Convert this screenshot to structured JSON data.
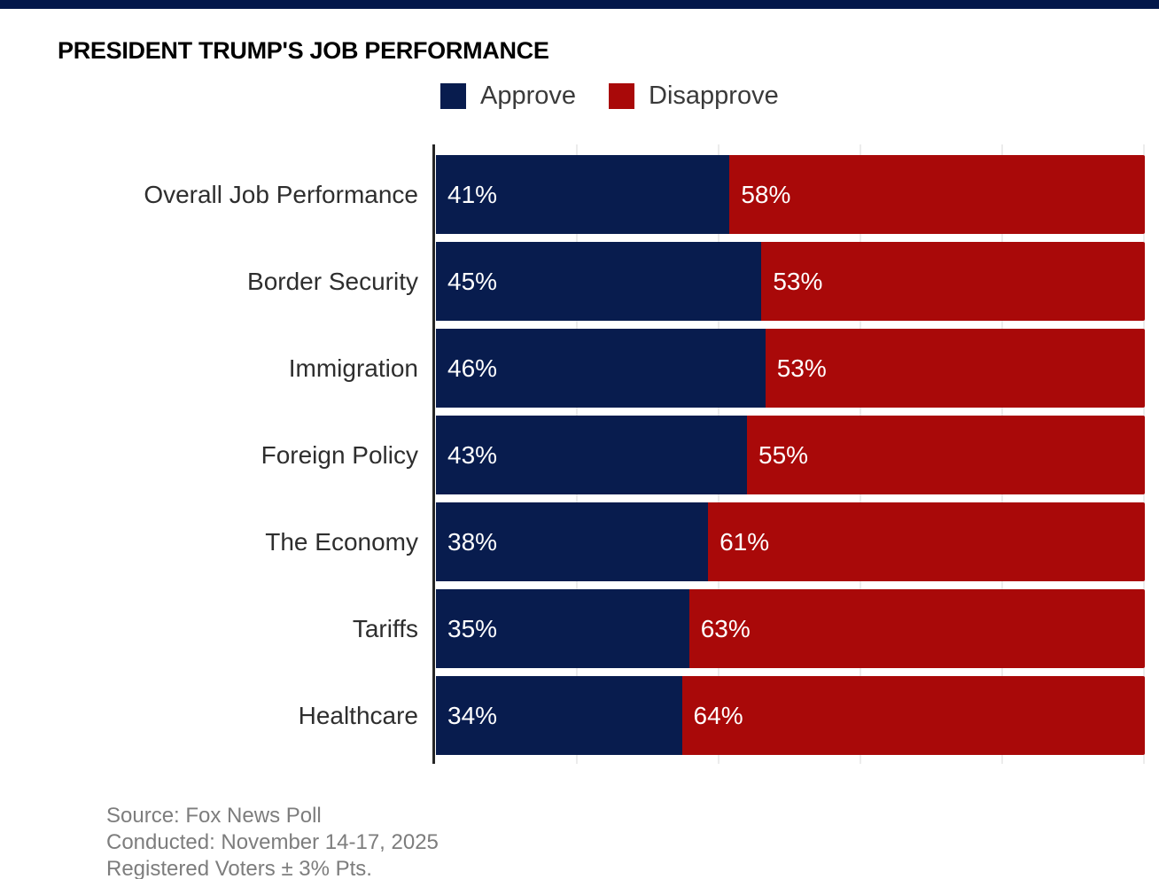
{
  "title": "PRESIDENT TRUMP'S JOB PERFORMANCE",
  "banner": {
    "color": "#02174a"
  },
  "colors": {
    "approve": "#081c4e",
    "disapprove": "#a90909",
    "axis": "#262626",
    "gridline": "#ececec"
  },
  "legend": {
    "items": [
      {
        "label": "Approve",
        "color": "#081c4e"
      },
      {
        "label": "Disapprove",
        "color": "#a90909"
      }
    ]
  },
  "chart_data": {
    "type": "bar",
    "orientation": "horizontal",
    "stacked": true,
    "normalized": true,
    "title": "PRESIDENT TRUMP'S JOB PERFORMANCE",
    "categories": [
      "Overall Job Performance",
      "Border Security",
      "Immigration",
      "Foreign Policy",
      "The Economy",
      "Tariffs",
      "Healthcare"
    ],
    "series": [
      {
        "name": "Approve",
        "color": "#081c4e",
        "values": [
          41,
          45,
          46,
          43,
          38,
          35,
          34
        ]
      },
      {
        "name": "Disapprove",
        "color": "#a90909",
        "values": [
          58,
          53,
          53,
          55,
          61,
          63,
          64
        ]
      }
    ],
    "value_suffix": "%",
    "xlim": [
      0,
      100
    ],
    "grid": "vertical gridlines every 20%",
    "legend_position": "top"
  },
  "source": {
    "lines": [
      "Source: Fox News Poll",
      "Conducted: November 14-17, 2025",
      "Registered Voters ± 3% Pts."
    ]
  }
}
